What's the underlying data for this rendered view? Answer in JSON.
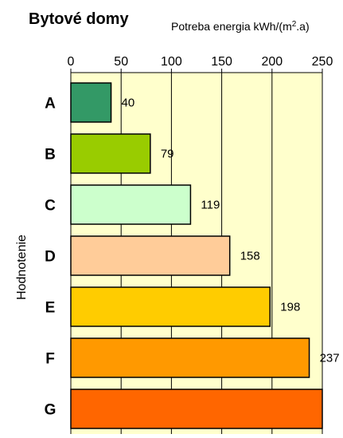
{
  "chart_data": {
    "type": "bar",
    "orientation": "horizontal",
    "title": "Bytové domy",
    "subtitle": "Potreba energia kWh/(m².a)",
    "ylabel": "Hodnotenie",
    "xlabel": "",
    "xlim": [
      0,
      250
    ],
    "x_ticks": [
      "0",
      "50",
      "100",
      "150",
      "200",
      "250"
    ],
    "x_tick_values": [
      0,
      50,
      100,
      150,
      200,
      250
    ],
    "x_axis_position": "top",
    "grid": true,
    "plot_background": "#ffffcc",
    "categories": [
      "A",
      "B",
      "C",
      "D",
      "E",
      "F",
      "G"
    ],
    "values": [
      40,
      79,
      119,
      158,
      198,
      237,
      250
    ],
    "value_labels": [
      "40",
      "79",
      "119",
      "158",
      "198",
      "237",
      ""
    ],
    "colors": [
      "#339966",
      "#99cc00",
      "#ccffcc",
      "#ffcc99",
      "#ffcc00",
      "#ff9900",
      "#ff6600"
    ]
  }
}
